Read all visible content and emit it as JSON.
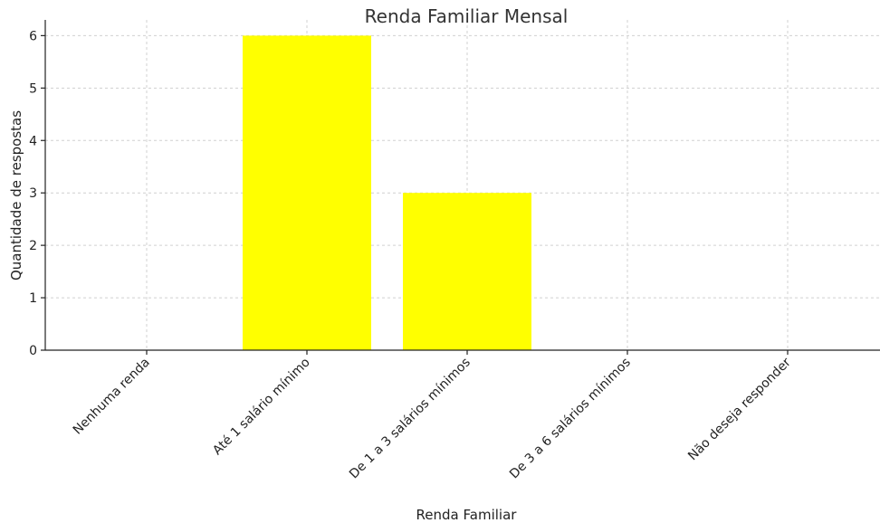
{
  "chart_data": {
    "type": "bar",
    "title": "Renda Familiar Mensal",
    "xlabel": "Renda Familiar",
    "ylabel": "Quantidade de respostas",
    "categories": [
      "Nenhuma renda",
      "Até 1 salário mínimo",
      "De 1 a 3 salários mínimos",
      "De 3 a 6 salários mínimos",
      "Não deseja responder"
    ],
    "values": [
      0,
      6,
      3,
      0,
      0
    ],
    "ylim": [
      0,
      6.3
    ],
    "yticks": [
      "0",
      "1",
      "2",
      "3",
      "4",
      "5",
      "6"
    ],
    "grid": true,
    "bar_color": "#ffff00"
  }
}
